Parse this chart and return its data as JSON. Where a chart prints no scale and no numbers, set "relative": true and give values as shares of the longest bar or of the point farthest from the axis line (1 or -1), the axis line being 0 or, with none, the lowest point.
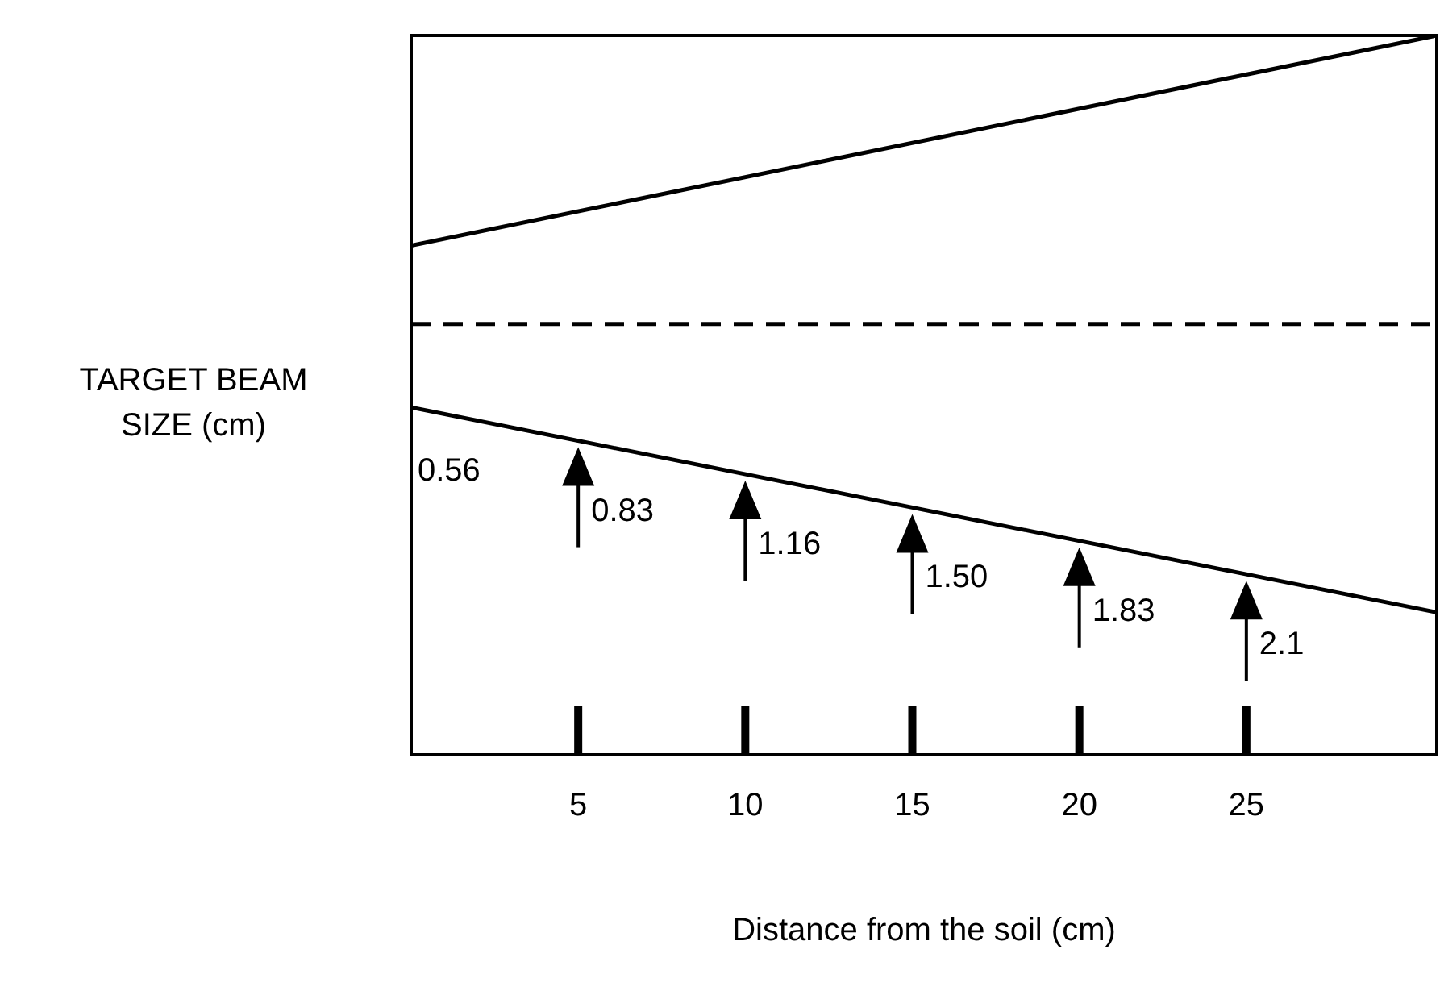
{
  "chart_data": {
    "type": "line",
    "relative": true,
    "xlabel": "Distance from the soil (cm)",
    "ylabel": "TARGET BEAM SIZE (cm)",
    "xlim": [
      0,
      30.7
    ],
    "xticks": [
      5,
      10,
      15,
      20,
      25
    ],
    "grid": false,
    "legend": false,
    "marker": "none",
    "x": [
      0,
      30.7
    ],
    "series": [
      {
        "color": "#000000",
        "values": [
          0.708,
          1.0
        ],
        "line_style": "solid"
      },
      {
        "color": "#000000",
        "values": [
          0.599,
          0.599
        ],
        "line_style": "dashed"
      },
      {
        "color": "#000000",
        "values": [
          0.483,
          0.198
        ],
        "line_style": "solid"
      }
    ],
    "annotations": [
      "0.56",
      "0.83",
      "1.16",
      "1.50",
      "1.83",
      "2.1"
    ]
  }
}
